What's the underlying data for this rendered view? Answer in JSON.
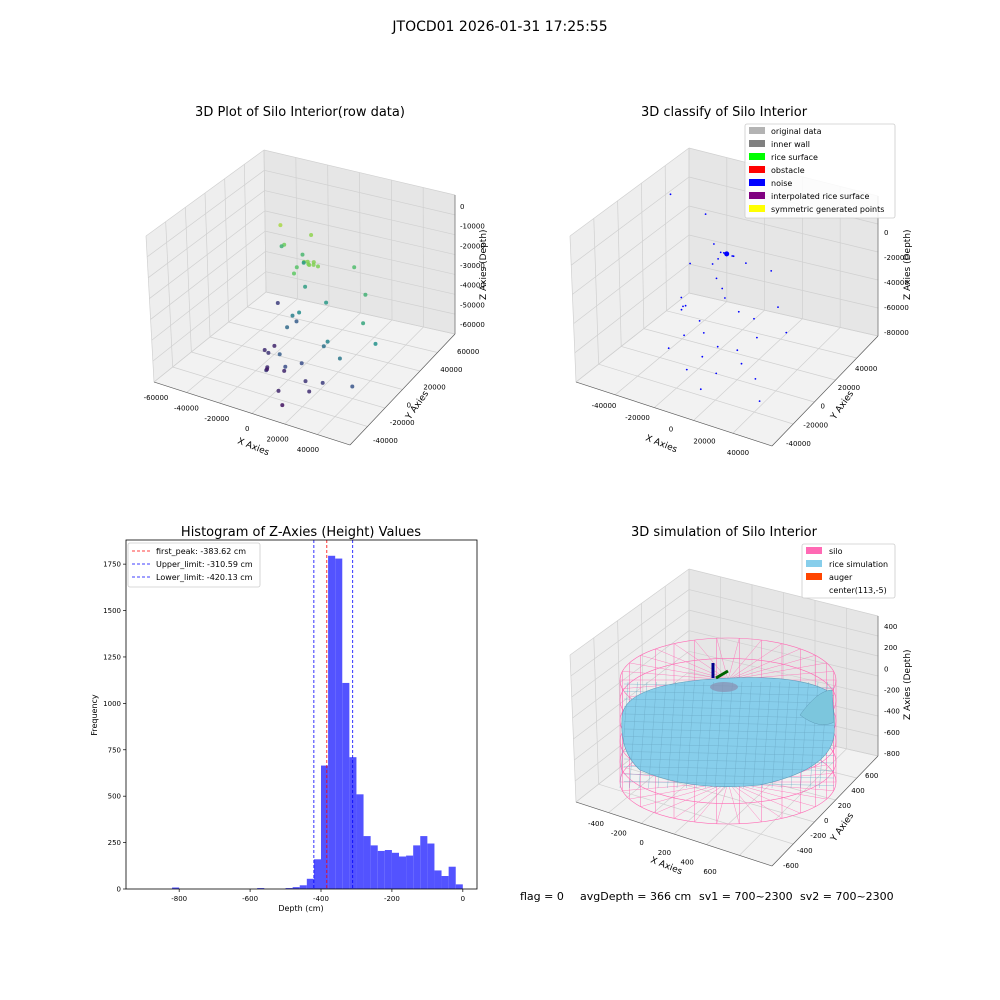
{
  "suptitle": "JTOCD01 2026-01-31 17:25:55",
  "footer": {
    "flag": "flag = 0",
    "avg_depth": "avgDepth = 366 cm",
    "sv1": "sv1 = 700~2300",
    "sv2": "sv2 = 700~2300"
  },
  "colors": {
    "hist_bar": "#4a4aff",
    "first_peak": "#ff0000",
    "limit": "#0000ff",
    "silo": "#ff69b4",
    "rice_simulation": "#87ceeb",
    "auger": "#ff4500",
    "noise": "#0000ff"
  },
  "chart_data": [
    {
      "type": "scatter",
      "subtype": "3d",
      "title": "3D Plot of Silo Interior(row data)",
      "xlabel": "X Axies",
      "ylabel": "Y Axies",
      "zlabel": "Z Axies (Depth)",
      "x_ticks": [
        "-60000",
        "-40000",
        "-20000",
        "0",
        "20000",
        "40000"
      ],
      "y_ticks": [
        "-40000",
        "-20000",
        "0",
        "20000",
        "40000",
        "60000"
      ],
      "z_ticks": [
        "0",
        "-10000",
        "-20000",
        "-30000",
        "-40000",
        "-50000",
        "-60000"
      ],
      "xlim": [
        -65000,
        50000
      ],
      "ylim": [
        -50000,
        65000
      ],
      "zlim": [
        -70000,
        5000
      ],
      "colormap": "viridis",
      "grid": true,
      "points": [
        [
          -30000,
          20000,
          -5000
        ],
        [
          -25000,
          15000,
          -12000
        ],
        [
          -15000,
          25000,
          -8000
        ],
        [
          -5000,
          0,
          -9000
        ],
        [
          -4000,
          2000,
          -9500
        ],
        [
          -3000,
          1000,
          -10000
        ],
        [
          -2000,
          0,
          -9800
        ],
        [
          -1000,
          3000,
          -9200
        ],
        [
          0,
          1000,
          -9600
        ],
        [
          2000,
          2000,
          -10200
        ],
        [
          -8000,
          -5000,
          -14000
        ],
        [
          -12000,
          5000,
          -16000
        ],
        [
          -20000,
          25000,
          -20000
        ],
        [
          -35000,
          30000,
          -22000
        ],
        [
          10000,
          25000,
          -18000
        ],
        [
          25000,
          10000,
          -22000
        ],
        [
          35000,
          -10000,
          -26000
        ],
        [
          45000,
          -15000,
          -32000
        ],
        [
          -25000,
          35000,
          -30000
        ],
        [
          -10000,
          10000,
          -28000
        ],
        [
          5000,
          5000,
          -30000
        ],
        [
          20000,
          -20000,
          -36000
        ],
        [
          30000,
          -25000,
          -40000
        ],
        [
          -5000,
          -5000,
          -34000
        ],
        [
          -10000,
          -3000,
          -38000
        ],
        [
          -12000,
          -5000,
          -44000
        ],
        [
          -15000,
          10000,
          -48000
        ],
        [
          15000,
          -15000,
          -42000
        ],
        [
          40000,
          -30000,
          -50000
        ],
        [
          -40000,
          35000,
          -56000
        ],
        [
          -5000,
          -25000,
          -48000
        ],
        [
          0,
          -28000,
          -52000
        ],
        [
          5000,
          -20000,
          -52000
        ],
        [
          -10000,
          -30000,
          -56000
        ],
        [
          -20000,
          -10000,
          -58000
        ],
        [
          -25000,
          -5000,
          -60000
        ],
        [
          -15000,
          -20000,
          -60000
        ],
        [
          -8000,
          -15000,
          -62000
        ],
        [
          10000,
          -25000,
          -58000
        ],
        [
          15000,
          -30000,
          -60000
        ],
        [
          20000,
          -25000,
          -56000
        ],
        [
          0,
          -35000,
          -62000
        ],
        [
          -25000,
          5000,
          -62000
        ],
        [
          5000,
          -40000,
          -66000
        ],
        [
          -18000,
          -15000,
          -64000
        ]
      ]
    },
    {
      "type": "scatter",
      "subtype": "3d",
      "title": "3D classify of Silo Interior",
      "xlabel": "X Axies",
      "ylabel": "Y Axies",
      "zlabel": "Z Axies (Depth)",
      "x_ticks": [
        "-40000",
        "-20000",
        "0",
        "20000",
        "40000"
      ],
      "y_ticks": [
        "-40000",
        "-20000",
        "0",
        "20000",
        "40000"
      ],
      "z_ticks": [
        "0",
        "-20000",
        "-40000",
        "-60000",
        "-80000"
      ],
      "xlim": [
        -50000,
        50000
      ],
      "ylim": [
        -50000,
        50000
      ],
      "zlim": [
        -90000,
        10000
      ],
      "grid": true,
      "legend": [
        {
          "label": "original data",
          "color": "#b3b3b3"
        },
        {
          "label": "inner wall",
          "color": "#808080"
        },
        {
          "label": "rice surface",
          "color": "#00ff00"
        },
        {
          "label": "obstacle",
          "color": "#ff0000"
        },
        {
          "label": "noise",
          "color": "#0000ff"
        },
        {
          "label": "interpolated rice surface",
          "color": "#800080"
        },
        {
          "label": "symmetric generated points",
          "color": "#ffff00"
        }
      ],
      "legend_loc": "upper right",
      "points": [
        [
          -45000,
          25000,
          -5000
        ],
        [
          -30000,
          30000,
          -15000
        ],
        [
          -20000,
          20000,
          -25000
        ],
        [
          -5000,
          0,
          -12000
        ],
        [
          -4000,
          1000,
          -12500
        ],
        [
          -3000,
          2000,
          -13000
        ],
        [
          -2000,
          0,
          -12800
        ],
        [
          0,
          1500,
          -13200
        ],
        [
          1000,
          1000,
          -12600
        ],
        [
          -8000,
          -2000,
          -20000
        ],
        [
          5000,
          5000,
          -18000
        ],
        [
          15000,
          10000,
          -22000
        ],
        [
          30000,
          -10000,
          -28000
        ],
        [
          40000,
          -20000,
          -35000
        ],
        [
          -15000,
          15000,
          -30000
        ],
        [
          -10000,
          5000,
          -35000
        ],
        [
          0,
          -5000,
          -38000
        ],
        [
          10000,
          -10000,
          -40000
        ],
        [
          25000,
          -20000,
          -45000
        ],
        [
          -35000,
          25000,
          -48000
        ],
        [
          -20000,
          -5000,
          -52000
        ],
        [
          -10000,
          -10000,
          -55000
        ],
        [
          -5000,
          -15000,
          -58000
        ],
        [
          5000,
          -20000,
          -60000
        ],
        [
          15000,
          -20000,
          -58000
        ],
        [
          20000,
          -25000,
          -62000
        ],
        [
          -25000,
          0,
          -60000
        ],
        [
          -15000,
          -15000,
          -64000
        ],
        [
          0,
          -25000,
          -66000
        ],
        [
          -30000,
          10000,
          -66000
        ],
        [
          10000,
          -30000,
          -70000
        ],
        [
          30000,
          -30000,
          -65000
        ],
        [
          -20000,
          -20000,
          -72000
        ],
        [
          -5000,
          -30000,
          -74000
        ],
        [
          5000,
          -35000,
          -80000
        ],
        [
          35000,
          -35000,
          -75000
        ],
        [
          -10000,
          10000,
          -45000
        ],
        [
          12000,
          0,
          -50000
        ],
        [
          -28000,
          5000,
          -56000
        ]
      ]
    },
    {
      "type": "bar",
      "subtype": "histogram",
      "title": "Histogram of Z-Axies (Height) Values",
      "xlabel": "Depth (cm)",
      "ylabel": "Frequency",
      "xlim": [
        -950,
        40
      ],
      "ylim": [
        0,
        1880
      ],
      "x_ticks": [
        -800,
        -600,
        -400,
        -200,
        0
      ],
      "y_ticks": [
        0,
        250,
        500,
        750,
        1000,
        1250,
        1500,
        1750
      ],
      "legend_loc": "upper left",
      "vlines": [
        {
          "label": "first_peak: -383.62 cm",
          "x": -383.62,
          "color": "#ff0000"
        },
        {
          "label": "Upper_limit: -310.59 cm",
          "x": -310.59,
          "color": "#0000ff"
        },
        {
          "label": "Lower_limit: -420.13 cm",
          "x": -420.13,
          "color": "#0000ff"
        }
      ],
      "bins": [
        [
          -820,
          -800,
          8
        ],
        [
          -580,
          -560,
          5
        ],
        [
          -500,
          -480,
          5
        ],
        [
          -480,
          -460,
          10
        ],
        [
          -460,
          -440,
          20
        ],
        [
          -440,
          -420,
          55
        ],
        [
          -420,
          -400,
          160
        ],
        [
          -400,
          -380,
          665
        ],
        [
          -380,
          -360,
          1795
        ],
        [
          -360,
          -340,
          1780
        ],
        [
          -340,
          -320,
          1110
        ],
        [
          -320,
          -300,
          710
        ],
        [
          -300,
          -280,
          510
        ],
        [
          -280,
          -260,
          285
        ],
        [
          -260,
          -240,
          235
        ],
        [
          -240,
          -220,
          205
        ],
        [
          -220,
          -200,
          210
        ],
        [
          -200,
          -180,
          195
        ],
        [
          -180,
          -160,
          175
        ],
        [
          -160,
          -140,
          180
        ],
        [
          -140,
          -120,
          235
        ],
        [
          -120,
          -100,
          285
        ],
        [
          -100,
          -80,
          245
        ],
        [
          -80,
          -60,
          100
        ],
        [
          -60,
          -40,
          70
        ],
        [
          -40,
          -20,
          120
        ],
        [
          -20,
          0,
          25
        ]
      ]
    },
    {
      "type": "area",
      "subtype": "3d-surface",
      "title": "3D simulation of Silo Interior",
      "xlabel": "X Axies",
      "ylabel": "Y Axies",
      "zlabel": "Z Axies (Depth)",
      "x_ticks": [
        "-400",
        "-200",
        "0",
        "200",
        "400",
        "600"
      ],
      "y_ticks": [
        "-600",
        "-400",
        "-200",
        "0",
        "200",
        "400",
        "600"
      ],
      "z_ticks": [
        "400",
        "200",
        "0",
        "-200",
        "-400",
        "-600",
        "-800"
      ],
      "grid": true,
      "legend": [
        {
          "label": "silo",
          "color": "#ff69b4"
        },
        {
          "label": "rice simulation",
          "color": "#87ceeb"
        },
        {
          "label": "auger",
          "color": "#ff4500"
        },
        {
          "label": "center(113,-5)",
          "color": ""
        }
      ],
      "legend_loc": "upper right"
    }
  ]
}
